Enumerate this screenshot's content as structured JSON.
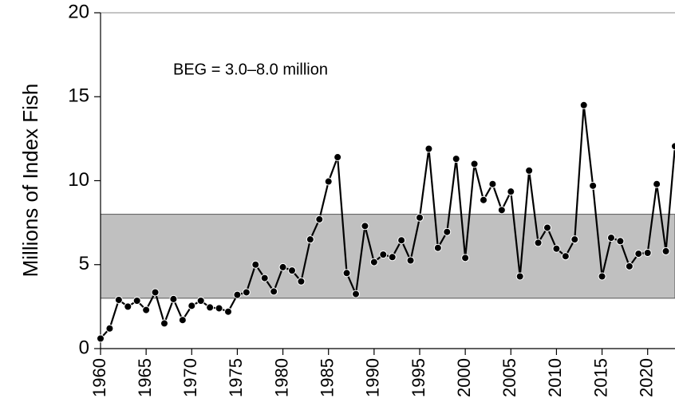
{
  "chart_data": {
    "type": "line",
    "y_label": "Millions of Index Fish",
    "annotation": "BEG = 3.0–8.0 million",
    "goal_range": [
      3,
      8
    ],
    "goal_color": "#c0c0c0",
    "color": "#000000",
    "x": [
      1960,
      1961,
      1962,
      1963,
      1964,
      1965,
      1966,
      1967,
      1968,
      1969,
      1970,
      1971,
      1972,
      1973,
      1974,
      1975,
      1976,
      1977,
      1978,
      1979,
      1980,
      1981,
      1982,
      1983,
      1984,
      1985,
      1986,
      1987,
      1988,
      1989,
      1990,
      1991,
      1992,
      1993,
      1994,
      1995,
      1996,
      1997,
      1998,
      1999,
      2000,
      2001,
      2002,
      2003,
      2004,
      2005,
      2006,
      2007,
      2008,
      2009,
      2010,
      2011,
      2012,
      2013,
      2014,
      2015,
      2016,
      2017,
      2018,
      2019,
      2020,
      2021,
      2022,
      2023
    ],
    "values": [
      0.6,
      1.2,
      2.9,
      2.5,
      2.85,
      2.3,
      3.35,
      1.5,
      2.95,
      1.7,
      2.55,
      2.85,
      2.45,
      2.4,
      2.2,
      3.2,
      3.35,
      5.0,
      4.2,
      3.4,
      4.85,
      4.65,
      4.0,
      6.5,
      7.7,
      9.95,
      11.4,
      4.5,
      3.25,
      7.3,
      5.15,
      5.6,
      5.45,
      6.45,
      5.25,
      7.8,
      11.9,
      6.0,
      6.95,
      11.3,
      5.4,
      11.0,
      8.85,
      9.8,
      8.25,
      9.35,
      4.3,
      10.6,
      6.3,
      7.2,
      5.95,
      5.5,
      6.5,
      14.5,
      9.7,
      4.3,
      6.6,
      6.4,
      4.9,
      5.65,
      5.7,
      9.8,
      5.8,
      12.05
    ],
    "xlim": [
      1960,
      2023
    ],
    "xticks": [
      1960,
      1965,
      1970,
      1975,
      1980,
      1985,
      1990,
      1995,
      2000,
      2005,
      2010,
      2015,
      2020
    ],
    "ylim": [
      0,
      20
    ],
    "yticks": [
      0,
      5,
      10,
      15,
      20
    ]
  }
}
